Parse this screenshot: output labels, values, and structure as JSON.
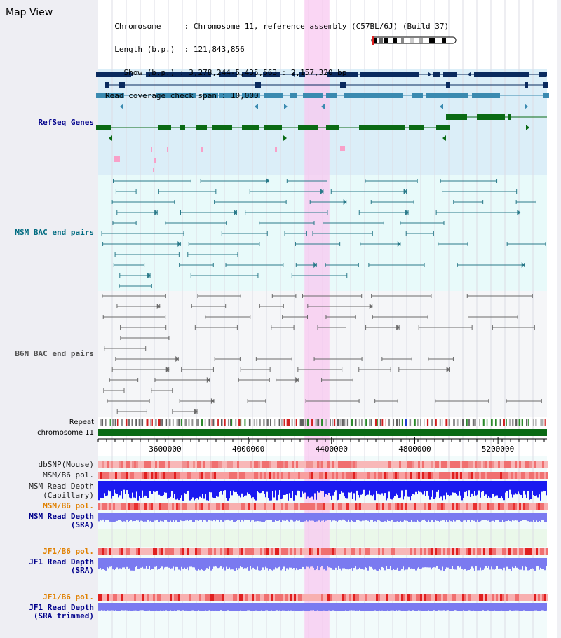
{
  "page": {
    "title": "Map View"
  },
  "header": {
    "chromosome_key": "Chromosome",
    "chromosome_value": "Chromosome 11, reference assembly (C57BL/6J) (Build 37)",
    "length_key": "Length (b.p.)",
    "length_value": "121,843,856",
    "show_key": "Show (b.p.)",
    "show_value": "3,278,244-5,435,563 : 2,157,320 bp",
    "coverage_key": "Read coverage check span",
    "coverage_value": "10,000"
  },
  "view": {
    "start": 3278244,
    "end": 5435563,
    "highlight": [
      4270000,
      4390000
    ]
  },
  "axis": {
    "label": "chromosome 11",
    "ticks": [
      3600000,
      4000000,
      4400000,
      4800000,
      5200000
    ],
    "tick_labels": [
      "3600000",
      "4000000",
      "4400000",
      "4800000",
      "5200000"
    ]
  },
  "tracks": {
    "refseq": {
      "label": "RefSeq Genes"
    },
    "msm_bac": {
      "label": "MSM BAC end pairs"
    },
    "b6n_bac": {
      "label": "B6N BAC end pairs"
    },
    "repeat": {
      "label": "Repeat"
    },
    "chromosome": {
      "label": "chromosome 11"
    },
    "dbsnp": {
      "label": "dbSNP(Mouse)"
    },
    "msm_b6_pol_1": {
      "label": "MSM/B6 pol."
    },
    "msm_read_depth_cap": {
      "label_line1": "MSM Read Depth",
      "label_line2": "(Capillary)"
    },
    "msm_b6_pol_2": {
      "label": "MSM/B6 pol."
    },
    "msm_read_depth_sra": {
      "label_line1": "MSM Read Depth",
      "label_line2": "(SRA)"
    },
    "jf1_b6_pol_1": {
      "label": "JF1/B6 pol."
    },
    "jf1_read_depth_sra": {
      "label_line1": "JF1 Read Depth",
      "label_line2": "(SRA)"
    },
    "jf1_b6_pol_2": {
      "label": "JF1/B6 pol."
    },
    "jf1_read_depth_trim": {
      "label_line1": "JF1 Read Depth",
      "label_line2": "(SRA trimmed)"
    }
  },
  "colors": {
    "refseq_bg": "#dbeef8",
    "msm_bac_bg": "#e8fafa",
    "b6n_bac_bg": "#f5f6f8",
    "highlight": "#f8c8f0",
    "gene_dark": "#0a2a5e",
    "gene_mid": "#3a8ab0",
    "gene_green": "#0a6a14",
    "msm_bac_line": "#2a7a8a",
    "b6n_bac_line": "#6a6a6a",
    "chromosome_bar": "#0a6a14",
    "label_navy": "#00008b",
    "label_teal": "#006b80",
    "label_grey": "#505050",
    "label_orange": "#e08000",
    "read_depth_blue": "#1a1af0",
    "read_depth_light": "#7a7af0"
  }
}
